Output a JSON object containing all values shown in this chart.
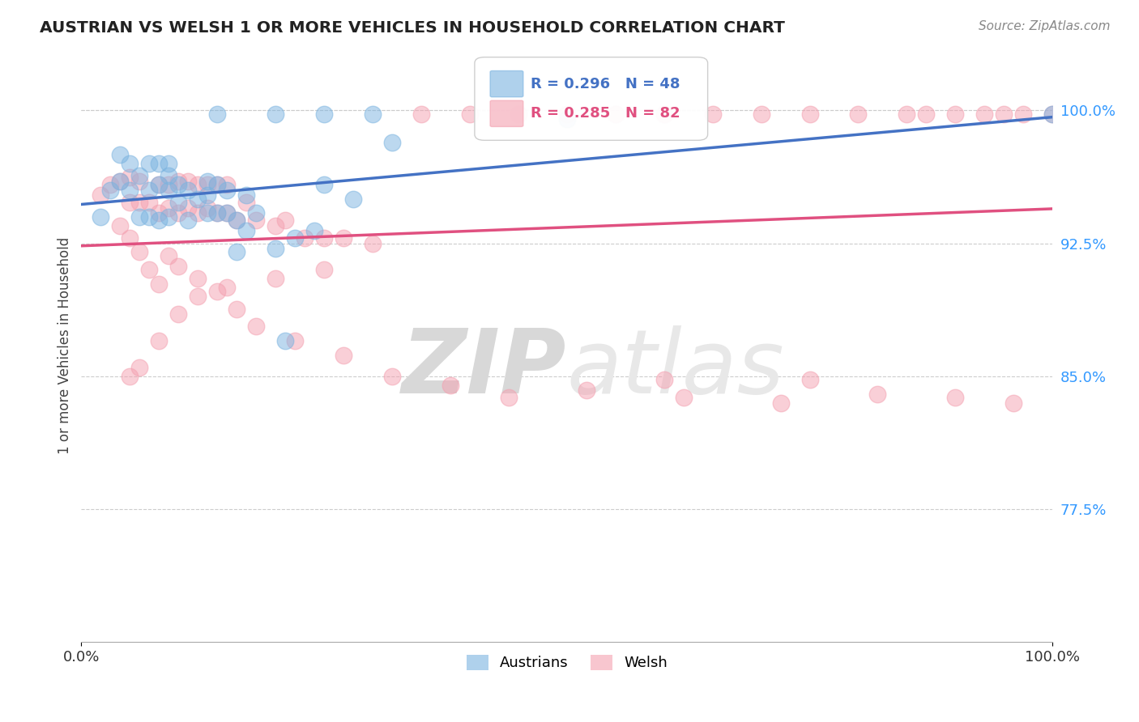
{
  "title": "AUSTRIAN VS WELSH 1 OR MORE VEHICLES IN HOUSEHOLD CORRELATION CHART",
  "source": "Source: ZipAtlas.com",
  "ylabel": "1 or more Vehicles in Household",
  "xlim": [
    0.0,
    1.0
  ],
  "ylim": [
    0.7,
    1.035
  ],
  "yticks": [
    0.775,
    0.85,
    0.925,
    1.0
  ],
  "ytick_labels": [
    "77.5%",
    "85.0%",
    "92.5%",
    "100.0%"
  ],
  "xtick_labels": [
    "0.0%",
    "100.0%"
  ],
  "xticks": [
    0.0,
    1.0
  ],
  "grid_color": "#cccccc",
  "background_color": "#ffffff",
  "austrians_color": "#7ab3e0",
  "welsh_color": "#f4a0b0",
  "austrians_R": 0.296,
  "austrians_N": 48,
  "welsh_R": 0.285,
  "welsh_N": 82,
  "legend_label_austrians": "Austrians",
  "legend_label_welsh": "Welsh",
  "watermark_zip": "ZIP",
  "watermark_atlas": "atlas",
  "aus_line_color": "#4472c4",
  "welsh_line_color": "#e05080",
  "austrians_x": [
    0.02,
    0.03,
    0.04,
    0.04,
    0.05,
    0.05,
    0.06,
    0.06,
    0.07,
    0.07,
    0.07,
    0.08,
    0.08,
    0.08,
    0.09,
    0.09,
    0.09,
    0.09,
    0.1,
    0.1,
    0.11,
    0.11,
    0.12,
    0.13,
    0.13,
    0.13,
    0.14,
    0.14,
    0.15,
    0.15,
    0.16,
    0.17,
    0.17,
    0.18,
    0.2,
    0.22,
    0.24,
    0.25,
    0.28,
    0.32,
    0.16,
    0.21,
    0.5,
    0.14,
    0.2,
    0.25,
    0.3,
    1.0
  ],
  "austrians_y": [
    0.94,
    0.955,
    0.96,
    0.975,
    0.955,
    0.97,
    0.94,
    0.963,
    0.94,
    0.955,
    0.97,
    0.938,
    0.958,
    0.97,
    0.94,
    0.955,
    0.963,
    0.97,
    0.948,
    0.958,
    0.938,
    0.955,
    0.95,
    0.942,
    0.952,
    0.96,
    0.942,
    0.958,
    0.942,
    0.955,
    0.938,
    0.932,
    0.952,
    0.942,
    0.922,
    0.928,
    0.932,
    0.958,
    0.95,
    0.982,
    0.92,
    0.87,
    0.995,
    0.998,
    0.998,
    0.998,
    0.998,
    0.998
  ],
  "welsh_x": [
    0.02,
    0.03,
    0.04,
    0.05,
    0.05,
    0.06,
    0.06,
    0.07,
    0.08,
    0.08,
    0.09,
    0.09,
    0.1,
    0.1,
    0.11,
    0.11,
    0.12,
    0.12,
    0.13,
    0.13,
    0.14,
    0.14,
    0.15,
    0.15,
    0.16,
    0.17,
    0.18,
    0.2,
    0.21,
    0.23,
    0.25,
    0.27,
    0.3,
    0.25,
    0.2,
    0.15,
    0.12,
    0.1,
    0.08,
    0.06,
    0.05,
    0.35,
    0.4,
    0.45,
    0.5,
    0.55,
    0.6,
    0.65,
    0.7,
    0.75,
    0.8,
    0.85,
    0.87,
    0.9,
    0.93,
    0.95,
    0.97,
    1.0,
    0.04,
    0.05,
    0.06,
    0.07,
    0.08,
    0.09,
    0.1,
    0.12,
    0.14,
    0.16,
    0.18,
    0.22,
    0.27,
    0.32,
    0.38,
    0.44,
    0.52,
    0.62,
    0.72,
    0.82,
    0.9,
    0.96,
    0.6,
    0.75
  ],
  "welsh_y": [
    0.952,
    0.958,
    0.96,
    0.948,
    0.962,
    0.948,
    0.96,
    0.948,
    0.942,
    0.958,
    0.945,
    0.958,
    0.942,
    0.96,
    0.945,
    0.96,
    0.942,
    0.958,
    0.945,
    0.958,
    0.942,
    0.958,
    0.942,
    0.958,
    0.938,
    0.948,
    0.938,
    0.935,
    0.938,
    0.928,
    0.928,
    0.928,
    0.925,
    0.91,
    0.905,
    0.9,
    0.895,
    0.885,
    0.87,
    0.855,
    0.85,
    0.998,
    0.998,
    0.998,
    0.998,
    0.998,
    0.998,
    0.998,
    0.998,
    0.998,
    0.998,
    0.998,
    0.998,
    0.998,
    0.998,
    0.998,
    0.998,
    0.998,
    0.935,
    0.928,
    0.92,
    0.91,
    0.902,
    0.918,
    0.912,
    0.905,
    0.898,
    0.888,
    0.878,
    0.87,
    0.862,
    0.85,
    0.845,
    0.838,
    0.842,
    0.838,
    0.835,
    0.84,
    0.838,
    0.835,
    0.848,
    0.848
  ]
}
